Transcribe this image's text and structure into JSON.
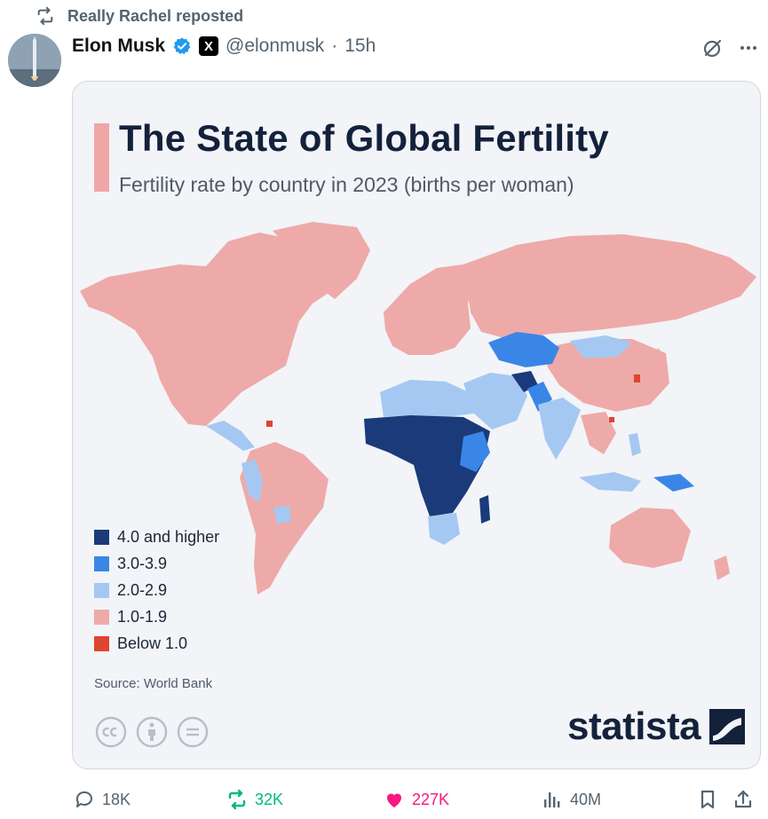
{
  "repost": {
    "text": "Really Rachel reposted"
  },
  "post": {
    "author_name": "Elon Musk",
    "x_badge": "X",
    "handle": "@elonmusk",
    "separator": "·",
    "time": "15h"
  },
  "chart": {
    "title": "The State of Global Fertility",
    "subtitle": "Fertility rate by country in 2023 (births per woman)",
    "source": "Source: World Bank",
    "brand": "statista",
    "colors": {
      "rate_4_plus": "#1b3a7a",
      "rate_3_to_3_9": "#3a86e6",
      "rate_2_to_2_9": "#a5c8f2",
      "rate_1_to_1_9": "#eeaaa8",
      "rate_below_1": "#dd4530",
      "title_bar": "#f0a6a6"
    },
    "legend": [
      {
        "label": "4.0 and higher",
        "color": "#1b3a7a"
      },
      {
        "label": "3.0-3.9",
        "color": "#3a86e6"
      },
      {
        "label": "2.0-2.9",
        "color": "#a5c8f2"
      },
      {
        "label": "1.0-1.9",
        "color": "#eeaaa8"
      },
      {
        "label": "Below 1.0",
        "color": "#dd4530"
      }
    ],
    "license_icons": [
      "creative-commons-icon",
      "attribution-icon",
      "no-derivatives-icon"
    ]
  },
  "actions": {
    "replies": "18K",
    "reposts": "32K",
    "likes": "227K",
    "views": "40M"
  },
  "icons": {
    "repost": "repost-icon",
    "verified": "verified-badge-icon",
    "grok": "grok-icon",
    "more": "more-icon",
    "reply": "reply-icon",
    "like": "heart-icon",
    "views": "views-icon",
    "bookmark": "bookmark-icon",
    "share": "share-icon"
  }
}
